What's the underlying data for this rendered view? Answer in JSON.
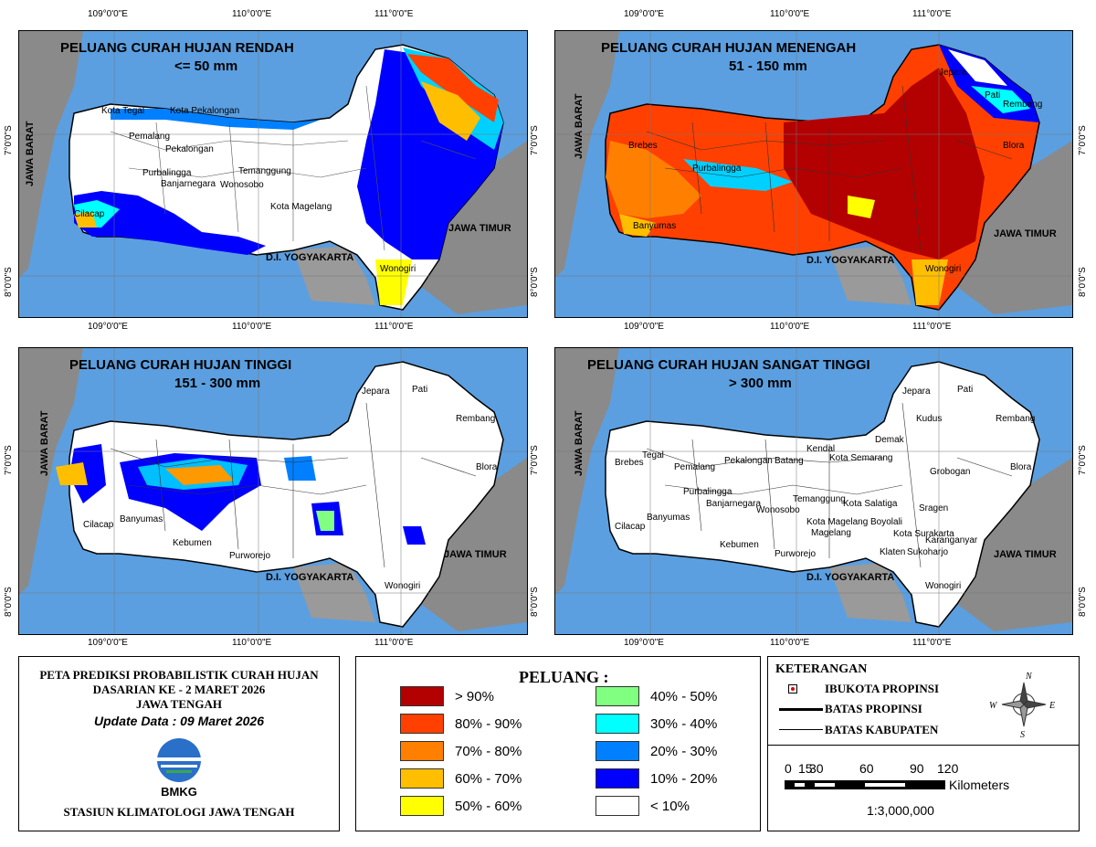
{
  "panels": [
    {
      "title1": "PELUANG CURAH HUJAN RENDAH",
      "title2": "<= 50 mm"
    },
    {
      "title1": "PELUANG CURAH HUJAN MENENGAH",
      "title2": "51 - 150 mm"
    },
    {
      "title1": "PELUANG CURAH HUJAN TINGGI",
      "title2": "151 - 300 mm"
    },
    {
      "title1": "PELUANG CURAH HUJAN SANGAT TINGGI",
      "title2": "> 300 mm"
    }
  ],
  "coords": {
    "lon": [
      "109°0'0\"E",
      "110°0'0\"E",
      "111°0'0\"E"
    ],
    "lat": [
      "7°0'0\"S",
      "8°0'0\"S"
    ]
  },
  "regions": {
    "jawa_barat": "JAWA BARAT",
    "jawa_timur": "JAWA TIMUR",
    "diy": "D.I. YOGYAKARTA"
  },
  "districts": [
    "Jepara",
    "Pati",
    "Rembang",
    "Kudus",
    "Demak",
    "Kota Tegal",
    "Kota Pekalongan",
    "Kendal",
    "Kota Semarang",
    "Brebes",
    "Tegal",
    "Pemalang",
    "Pekalongan",
    "Batang",
    "Semarang",
    "Grobogan",
    "Blora",
    "Purbalingga",
    "Banjarnegara",
    "Temanggung",
    "Kota Salatiga",
    "Wonosobo",
    "Kota Magelang",
    "Boyolali",
    "Sragen",
    "Magelang",
    "Banyumas",
    "Cilacap",
    "Kebumen",
    "Purworejo",
    "Kota Surakarta",
    "Karanganyar",
    "Klaten",
    "Sukoharjo",
    "Wonogiri"
  ],
  "info": {
    "line1": "PETA PREDIKSI PROBABILISTIK CURAH HUJAN",
    "line2": "DASARIAN KE - 2 MARET 2026",
    "line3": "JAWA TENGAH",
    "update": "Update Data : 09 Maret 2026",
    "logo_text": "BMKG",
    "station": "STASIUN KLIMATOLOGI JAWA TENGAH"
  },
  "legend": {
    "title": "PELUANG :",
    "items": [
      {
        "label": "> 90%",
        "color": "#b30000"
      },
      {
        "label": "80% - 90%",
        "color": "#ff4000"
      },
      {
        "label": "70% - 80%",
        "color": "#ff8000"
      },
      {
        "label": "60% - 70%",
        "color": "#ffbf00"
      },
      {
        "label": "50% - 60%",
        "color": "#ffff00"
      },
      {
        "label": "40% - 50%",
        "color": "#80ff80"
      },
      {
        "label": "30% - 40%",
        "color": "#00ffff"
      },
      {
        "label": "20% - 30%",
        "color": "#0080ff"
      },
      {
        "label": "10% - 20%",
        "color": "#0000ff"
      },
      {
        "label": "< 10%",
        "color": "#ffffff"
      }
    ]
  },
  "keterangan": {
    "title": "KETERANGAN",
    "ibukota": "IBUKOTA PROPINSI",
    "batas_propinsi": "BATAS PROPINSI",
    "batas_kabupaten": "BATAS KABUPATEN",
    "compass": {
      "n": "N",
      "e": "E",
      "w": "W",
      "s": "S"
    }
  },
  "scale": {
    "ticks": [
      "0",
      "15",
      "30",
      "60",
      "90",
      "120"
    ],
    "unit": "Kilometers",
    "ratio": "1:3,000,000"
  }
}
